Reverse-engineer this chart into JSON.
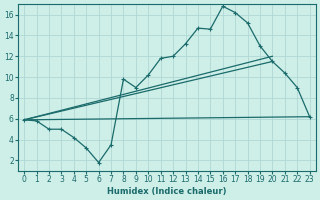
{
  "background_color": "#ceeee8",
  "line_color": "#1a6b6b",
  "grid_color": "#b0d8d5",
  "xlabel": "Humidex (Indice chaleur)",
  "xlim": [
    -0.5,
    23.5
  ],
  "ylim": [
    1.0,
    17.0
  ],
  "yticks": [
    2,
    4,
    6,
    8,
    10,
    12,
    14,
    16
  ],
  "xticks": [
    0,
    1,
    2,
    3,
    4,
    5,
    6,
    7,
    8,
    9,
    10,
    11,
    12,
    13,
    14,
    15,
    16,
    17,
    18,
    19,
    20,
    21,
    22,
    23
  ],
  "series1_x": [
    0,
    1,
    2,
    3,
    4,
    5,
    6,
    7,
    8,
    9,
    10,
    11,
    12,
    13,
    14,
    15,
    16,
    17,
    18,
    19,
    20,
    21,
    22,
    23
  ],
  "series1_y": [
    5.9,
    5.8,
    5.0,
    5.0,
    4.2,
    3.2,
    1.8,
    3.5,
    9.8,
    9.0,
    10.2,
    11.8,
    12.0,
    13.2,
    14.7,
    14.6,
    16.8,
    16.2,
    15.2,
    13.0,
    11.5,
    10.4,
    9.0,
    6.2
  ],
  "line1_x": [
    0,
    23
  ],
  "line1_y": [
    5.9,
    6.2
  ],
  "line2_x": [
    0,
    20
  ],
  "line2_y": [
    5.9,
    11.5
  ],
  "line3_x": [
    0,
    20
  ],
  "line3_y": [
    5.9,
    12.0
  ]
}
